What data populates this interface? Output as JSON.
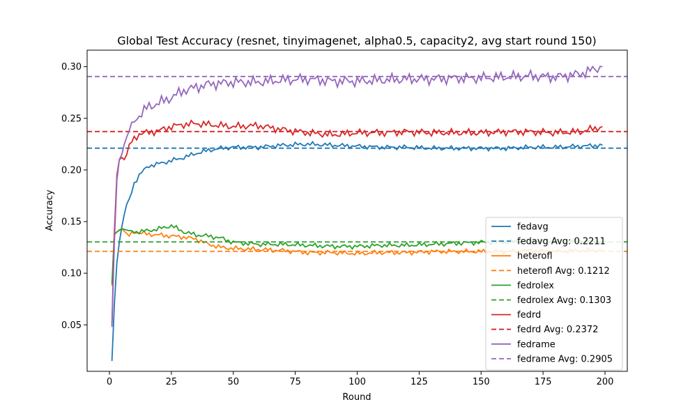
{
  "chart_data": {
    "type": "line",
    "title": "Global Test Accuracy (resnet, tinyimagenet, alpha0.5, capacity2, avg start round 150)",
    "xlabel": "Round",
    "ylabel": "Accuracy",
    "xlim": [
      -9,
      209
    ],
    "ylim": [
      0.005,
      0.316
    ],
    "xticks": [
      0,
      25,
      50,
      75,
      100,
      125,
      150,
      175,
      200
    ],
    "yticks": [
      0.05,
      0.1,
      0.15,
      0.2,
      0.25,
      0.3
    ],
    "ytick_labels": [
      "0.05",
      "0.10",
      "0.15",
      "0.20",
      "0.25",
      "0.30"
    ],
    "grid": false,
    "legend_position": "lower right",
    "series": [
      {
        "name": "fedavg",
        "color": "#1f77b4",
        "points": [
          [
            1,
            0.015
          ],
          [
            2,
            0.07
          ],
          [
            3,
            0.11
          ],
          [
            4,
            0.13
          ],
          [
            5,
            0.145
          ],
          [
            6,
            0.157
          ],
          [
            7,
            0.167
          ],
          [
            8,
            0.172
          ],
          [
            9,
            0.179
          ],
          [
            10,
            0.187
          ],
          [
            12,
            0.195
          ],
          [
            14,
            0.2
          ],
          [
            16,
            0.204
          ],
          [
            20,
            0.206
          ],
          [
            25,
            0.209
          ],
          [
            30,
            0.212
          ],
          [
            35,
            0.216
          ],
          [
            40,
            0.219
          ],
          [
            45,
            0.221
          ],
          [
            50,
            0.222
          ],
          [
            60,
            0.222
          ],
          [
            70,
            0.224
          ],
          [
            80,
            0.225
          ],
          [
            90,
            0.224
          ],
          [
            100,
            0.223
          ],
          [
            110,
            0.222
          ],
          [
            120,
            0.222
          ],
          [
            130,
            0.221
          ],
          [
            140,
            0.221
          ],
          [
            150,
            0.221
          ],
          [
            160,
            0.221
          ],
          [
            170,
            0.222
          ],
          [
            180,
            0.222
          ],
          [
            190,
            0.223
          ],
          [
            199,
            0.224
          ]
        ]
      },
      {
        "name": "fedavg Avg: 0.2211",
        "color": "#1f77b4",
        "dashed": true,
        "y": 0.2211
      },
      {
        "name": "heterofl",
        "color": "#ff7f0e",
        "points": [
          [
            1,
            0.088
          ],
          [
            2,
            0.137
          ],
          [
            3,
            0.14
          ],
          [
            4,
            0.142
          ],
          [
            5,
            0.143
          ],
          [
            8,
            0.136
          ],
          [
            10,
            0.14
          ],
          [
            15,
            0.138
          ],
          [
            20,
            0.137
          ],
          [
            25,
            0.136
          ],
          [
            30,
            0.135
          ],
          [
            35,
            0.133
          ],
          [
            40,
            0.128
          ],
          [
            45,
            0.125
          ],
          [
            50,
            0.124
          ],
          [
            60,
            0.123
          ],
          [
            70,
            0.122
          ],
          [
            80,
            0.12
          ],
          [
            90,
            0.12
          ],
          [
            100,
            0.119
          ],
          [
            110,
            0.12
          ],
          [
            120,
            0.12
          ],
          [
            130,
            0.121
          ],
          [
            140,
            0.121
          ],
          [
            150,
            0.121
          ],
          [
            160,
            0.121
          ],
          [
            170,
            0.122
          ],
          [
            180,
            0.121
          ],
          [
            190,
            0.122
          ],
          [
            199,
            0.122
          ]
        ]
      },
      {
        "name": "heterofl Avg: 0.1212",
        "color": "#ff7f0e",
        "dashed": true,
        "y": 0.1212
      },
      {
        "name": "fedrolex",
        "color": "#2ca02c",
        "points": [
          [
            1,
            0.09
          ],
          [
            2,
            0.138
          ],
          [
            3,
            0.14
          ],
          [
            5,
            0.143
          ],
          [
            10,
            0.14
          ],
          [
            15,
            0.141
          ],
          [
            20,
            0.143
          ],
          [
            25,
            0.146
          ],
          [
            30,
            0.14
          ],
          [
            35,
            0.137
          ],
          [
            40,
            0.136
          ],
          [
            45,
            0.134
          ],
          [
            50,
            0.13
          ],
          [
            60,
            0.128
          ],
          [
            70,
            0.128
          ],
          [
            80,
            0.127
          ],
          [
            90,
            0.126
          ],
          [
            100,
            0.126
          ],
          [
            110,
            0.127
          ],
          [
            120,
            0.127
          ],
          [
            130,
            0.128
          ],
          [
            140,
            0.129
          ],
          [
            150,
            0.13
          ],
          [
            160,
            0.13
          ],
          [
            170,
            0.131
          ],
          [
            180,
            0.131
          ],
          [
            190,
            0.131
          ],
          [
            199,
            0.131
          ]
        ]
      },
      {
        "name": "fedrolex Avg: 0.1303",
        "color": "#2ca02c",
        "dashed": true,
        "y": 0.1303
      },
      {
        "name": "fedrd",
        "color": "#d62728",
        "points": [
          [
            1,
            0.05
          ],
          [
            2,
            0.14
          ],
          [
            3,
            0.195
          ],
          [
            4,
            0.21
          ],
          [
            5,
            0.212
          ],
          [
            6,
            0.21
          ],
          [
            7,
            0.215
          ],
          [
            8,
            0.225
          ],
          [
            10,
            0.23
          ],
          [
            12,
            0.235
          ],
          [
            15,
            0.236
          ],
          [
            20,
            0.238
          ],
          [
            25,
            0.242
          ],
          [
            30,
            0.244
          ],
          [
            35,
            0.245
          ],
          [
            40,
            0.244
          ],
          [
            45,
            0.243
          ],
          [
            50,
            0.242
          ],
          [
            60,
            0.243
          ],
          [
            70,
            0.239
          ],
          [
            80,
            0.236
          ],
          [
            90,
            0.234
          ],
          [
            100,
            0.236
          ],
          [
            110,
            0.236
          ],
          [
            120,
            0.237
          ],
          [
            130,
            0.236
          ],
          [
            140,
            0.236
          ],
          [
            150,
            0.236
          ],
          [
            160,
            0.237
          ],
          [
            170,
            0.237
          ],
          [
            180,
            0.236
          ],
          [
            190,
            0.237
          ],
          [
            199,
            0.242
          ]
        ]
      },
      {
        "name": "fedrd Avg: 0.2372",
        "color": "#d62728",
        "dashed": true,
        "y": 0.2372
      },
      {
        "name": "fedrame",
        "color": "#9467bd",
        "points": [
          [
            1,
            0.048
          ],
          [
            2,
            0.13
          ],
          [
            3,
            0.19
          ],
          [
            4,
            0.21
          ],
          [
            5,
            0.215
          ],
          [
            6,
            0.225
          ],
          [
            7,
            0.232
          ],
          [
            8,
            0.238
          ],
          [
            9,
            0.241
          ],
          [
            10,
            0.247
          ],
          [
            12,
            0.253
          ],
          [
            15,
            0.26
          ],
          [
            18,
            0.263
          ],
          [
            20,
            0.265
          ],
          [
            25,
            0.27
          ],
          [
            30,
            0.277
          ],
          [
            35,
            0.28
          ],
          [
            40,
            0.283
          ],
          [
            45,
            0.284
          ],
          [
            50,
            0.285
          ],
          [
            60,
            0.285
          ],
          [
            70,
            0.287
          ],
          [
            80,
            0.288
          ],
          [
            90,
            0.286
          ],
          [
            100,
            0.286
          ],
          [
            110,
            0.287
          ],
          [
            120,
            0.288
          ],
          [
            130,
            0.288
          ],
          [
            140,
            0.289
          ],
          [
            150,
            0.289
          ],
          [
            160,
            0.29
          ],
          [
            170,
            0.291
          ],
          [
            180,
            0.29
          ],
          [
            190,
            0.293
          ],
          [
            199,
            0.3
          ]
        ]
      },
      {
        "name": "fedrame Avg: 0.2905",
        "color": "#9467bd",
        "dashed": true,
        "y": 0.2905
      }
    ]
  }
}
